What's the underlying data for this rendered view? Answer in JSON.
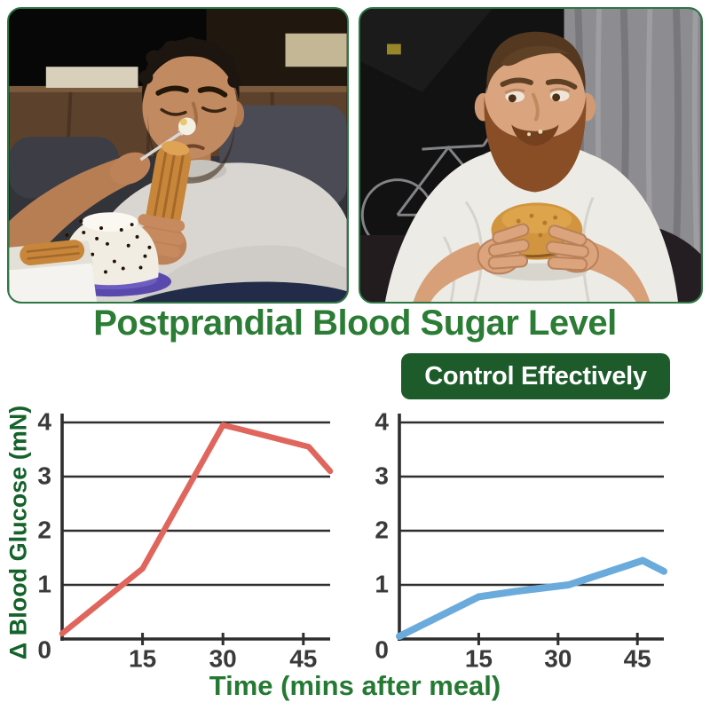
{
  "title": "Postprandial Blood Sugar Level",
  "badge": {
    "label": "Control Effectively"
  },
  "axes": {
    "ylabel": "Δ Blood Glucose (mN)",
    "xlabel": "Time (mins after meal)"
  },
  "photos": {
    "left_alt": "Overweight man lying on a sofa eating cream cake and churro pastries",
    "right_alt": "Overweight bearded man in a white t-shirt eating a big burger"
  },
  "colors": {
    "title_green": "#2b7c35",
    "badge_bg": "#1d5c2a",
    "badge_text": "#ffffff",
    "axis_label_green": "#15632b",
    "axis_ink": "#2e2e2e",
    "tick_ink": "#3a3a3a",
    "line_red": "#e0655c",
    "line_blue": "#6babdc"
  },
  "chart_data": [
    {
      "type": "line",
      "name": "uncontrolled-blood-sugar",
      "title": "",
      "color": "#e0655c",
      "x": [
        0,
        15,
        30,
        33,
        46,
        50
      ],
      "y": [
        0.1,
        1.3,
        3.95,
        3.88,
        3.55,
        3.1
      ],
      "xlabel": "Time (mins after meal)",
      "ylabel": "Δ Blood Glucose (mN)",
      "xlim": [
        0,
        50
      ],
      "ylim": [
        0,
        4
      ],
      "xticks": [
        15,
        30,
        45
      ],
      "yticks": [
        0,
        1,
        2,
        3,
        4
      ],
      "grid": "horizontal-only",
      "legend": "none"
    },
    {
      "type": "line",
      "name": "controlled-blood-sugar",
      "title": "",
      "color": "#6babdc",
      "x": [
        0,
        15,
        22,
        32,
        46,
        50
      ],
      "y": [
        0.05,
        0.78,
        0.88,
        1.0,
        1.45,
        1.25
      ],
      "xlabel": "Time (mins after meal)",
      "ylabel": "Δ Blood Glucose (mN)",
      "xlim": [
        0,
        50
      ],
      "ylim": [
        0,
        4
      ],
      "xticks": [
        15,
        30,
        45
      ],
      "yticks": [
        0,
        1,
        2,
        3,
        4
      ],
      "grid": "horizontal-only",
      "legend": "none"
    }
  ]
}
